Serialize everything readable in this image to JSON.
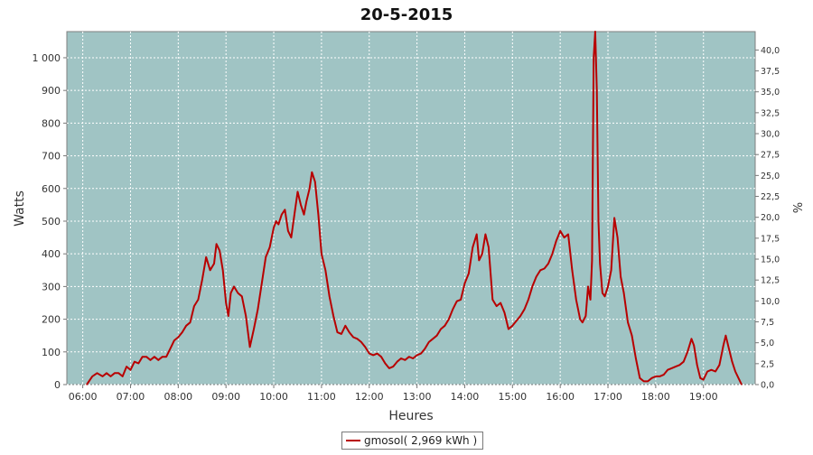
{
  "chart_data": {
    "type": "line",
    "title": "20-5-2015",
    "xlabel": "Heures",
    "ylabel": "Watts",
    "y2label": "%",
    "x_ticks": [
      "06:00",
      "07:00",
      "08:00",
      "09:00",
      "10:00",
      "11:00",
      "12:00",
      "13:00",
      "14:00",
      "15:00",
      "16:00",
      "17:00",
      "18:00",
      "19:00"
    ],
    "y_ticks": [
      "0",
      "100",
      "200",
      "300",
      "400",
      "500",
      "600",
      "700",
      "800",
      "900",
      "1 000"
    ],
    "y2_ticks": [
      "0,0",
      "2,5",
      "5,0",
      "7,5",
      "10,0",
      "12,5",
      "15,0",
      "17,5",
      "20,0",
      "22,5",
      "25,0",
      "27,5",
      "30,0",
      "32,5",
      "35,0",
      "37,5",
      "40,0"
    ],
    "xlim": [
      "05:40",
      "20:05"
    ],
    "ylim": [
      0,
      1080
    ],
    "y2lim": [
      0,
      42.2
    ],
    "grid": true,
    "plot_background": "#a0c4c4",
    "legend_position": "bottom-center",
    "series": [
      {
        "name": "gmosol( 2,969 kWh )",
        "color": "#b80000",
        "x": [
          "06:05",
          "06:12",
          "06:18",
          "06:25",
          "06:30",
          "06:35",
          "06:40",
          "06:45",
          "06:50",
          "06:55",
          "07:00",
          "07:05",
          "07:10",
          "07:15",
          "07:20",
          "07:25",
          "07:30",
          "07:35",
          "07:40",
          "07:45",
          "07:50",
          "07:55",
          "08:00",
          "08:05",
          "08:10",
          "08:15",
          "08:20",
          "08:25",
          "08:30",
          "08:35",
          "08:40",
          "08:45",
          "08:48",
          "08:52",
          "08:56",
          "09:00",
          "09:03",
          "09:06",
          "09:10",
          "09:15",
          "09:20",
          "09:25",
          "09:30",
          "09:35",
          "09:40",
          "09:45",
          "09:50",
          "09:55",
          "10:00",
          "10:03",
          "10:06",
          "10:10",
          "10:14",
          "10:18",
          "10:22",
          "10:26",
          "10:30",
          "10:34",
          "10:38",
          "10:41",
          "10:45",
          "10:48",
          "10:52",
          "10:56",
          "11:00",
          "11:05",
          "11:10",
          "11:15",
          "11:20",
          "11:25",
          "11:30",
          "11:35",
          "11:40",
          "11:45",
          "11:50",
          "11:55",
          "12:00",
          "12:05",
          "12:10",
          "12:15",
          "12:20",
          "12:25",
          "12:30",
          "12:35",
          "12:40",
          "12:45",
          "12:50",
          "12:55",
          "13:00",
          "13:05",
          "13:10",
          "13:15",
          "13:20",
          "13:25",
          "13:30",
          "13:35",
          "13:40",
          "13:45",
          "13:50",
          "13:55",
          "14:00",
          "14:05",
          "14:10",
          "14:15",
          "14:18",
          "14:22",
          "14:26",
          "14:30",
          "14:35",
          "14:40",
          "14:45",
          "14:50",
          "14:55",
          "15:00",
          "15:05",
          "15:10",
          "15:15",
          "15:20",
          "15:25",
          "15:30",
          "15:35",
          "15:40",
          "15:45",
          "15:50",
          "15:55",
          "16:00",
          "16:05",
          "16:10",
          "16:15",
          "16:20",
          "16:25",
          "16:28",
          "16:32",
          "16:35",
          "16:38",
          "16:40",
          "16:42",
          "16:44",
          "16:46",
          "16:48",
          "16:50",
          "16:53",
          "16:56",
          "17:00",
          "17:04",
          "17:08",
          "17:12",
          "17:16",
          "17:20",
          "17:25",
          "17:30",
          "17:35",
          "17:40",
          "17:45",
          "17:50",
          "17:55",
          "18:00",
          "18:05",
          "18:10",
          "18:15",
          "18:20",
          "18:25",
          "18:30",
          "18:35",
          "18:40",
          "18:45",
          "18:48",
          "18:52",
          "18:56",
          "19:00",
          "19:05",
          "19:10",
          "19:15",
          "19:20",
          "19:25",
          "19:28",
          "19:32",
          "19:36",
          "19:40",
          "19:44",
          "19:48"
        ],
        "values": [
          0,
          25,
          35,
          25,
          35,
          25,
          35,
          35,
          25,
          55,
          45,
          70,
          65,
          85,
          85,
          75,
          85,
          75,
          85,
          85,
          110,
          135,
          145,
          160,
          180,
          190,
          240,
          260,
          320,
          390,
          350,
          370,
          430,
          410,
          350,
          250,
          210,
          280,
          300,
          280,
          270,
          210,
          115,
          170,
          230,
          310,
          390,
          420,
          480,
          500,
          490,
          520,
          535,
          470,
          450,
          520,
          590,
          550,
          520,
          560,
          600,
          650,
          620,
          520,
          400,
          350,
          270,
          210,
          160,
          155,
          180,
          160,
          145,
          140,
          130,
          115,
          95,
          90,
          95,
          85,
          65,
          50,
          55,
          70,
          80,
          75,
          85,
          80,
          90,
          95,
          110,
          130,
          140,
          150,
          170,
          180,
          200,
          230,
          255,
          260,
          310,
          340,
          420,
          460,
          380,
          400,
          460,
          420,
          260,
          240,
          250,
          220,
          170,
          180,
          195,
          210,
          230,
          260,
          300,
          330,
          350,
          355,
          370,
          400,
          440,
          470,
          450,
          460,
          350,
          260,
          200,
          190,
          210,
          300,
          260,
          380,
          1000,
          1080,
          900,
          500,
          370,
          280,
          270,
          300,
          350,
          510,
          450,
          330,
          280,
          190,
          150,
          80,
          20,
          10,
          10,
          20,
          25,
          25,
          30,
          45,
          50,
          55,
          60,
          70,
          100,
          140,
          120,
          60,
          20,
          15,
          40,
          45,
          40,
          60,
          120,
          150,
          110,
          70,
          40,
          20,
          0
        ]
      }
    ]
  }
}
